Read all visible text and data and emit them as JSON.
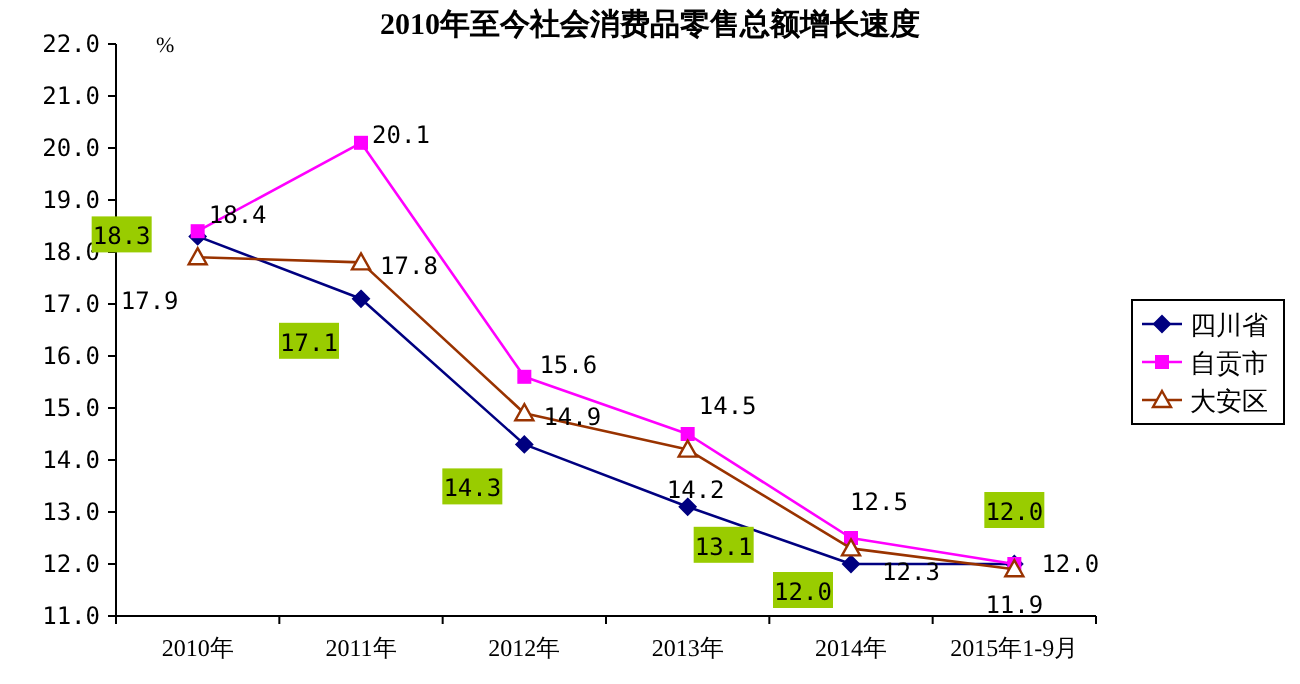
{
  "chart_data": {
    "type": "line",
    "title": "2010年至今社会消费品零售总额增长速度",
    "ylabel": "%",
    "categories": [
      "2010年",
      "2011年",
      "2012年",
      "2013年",
      "2014年",
      "2015年1-9月"
    ],
    "series": [
      {
        "name": "四川省",
        "color": "#000080",
        "marker": "diamond",
        "values": [
          18.3,
          17.1,
          14.3,
          13.1,
          12.0,
          12.0
        ],
        "value_labels": [
          "18.3",
          "17.1",
          "14.3",
          "13.1",
          "12.0",
          "12.0"
        ]
      },
      {
        "name": "自贡市",
        "color": "#ff00ff",
        "marker": "square",
        "values": [
          18.4,
          20.1,
          15.6,
          14.5,
          12.5,
          12.0
        ],
        "value_labels": [
          "18.4",
          "20.1",
          "15.6",
          "14.5",
          "12.5",
          "12.0"
        ]
      },
      {
        "name": "大安区",
        "color": "#993300",
        "marker": "triangle",
        "values": [
          17.9,
          17.8,
          14.9,
          14.2,
          12.3,
          11.9
        ],
        "value_labels": [
          "17.9",
          "17.8",
          "14.9",
          "14.2",
          "12.3",
          "11.9"
        ]
      }
    ],
    "ylim": [
      11,
      22
    ],
    "yticks": [
      {
        "value": 11,
        "label": "11.0"
      },
      {
        "value": 12,
        "label": "12.0"
      },
      {
        "value": 13,
        "label": "13.0"
      },
      {
        "value": 14,
        "label": "14.0"
      },
      {
        "value": 15,
        "label": "15.0"
      },
      {
        "value": 16,
        "label": "16.0"
      },
      {
        "value": 17,
        "label": "17.0"
      },
      {
        "value": 18,
        "label": "18.0"
      },
      {
        "value": 19,
        "label": "19.0"
      },
      {
        "value": 20,
        "label": "20.0"
      },
      {
        "value": 21,
        "label": "21.0"
      },
      {
        "value": 22,
        "label": "22.0"
      }
    ],
    "grid": false,
    "legend": "right"
  }
}
